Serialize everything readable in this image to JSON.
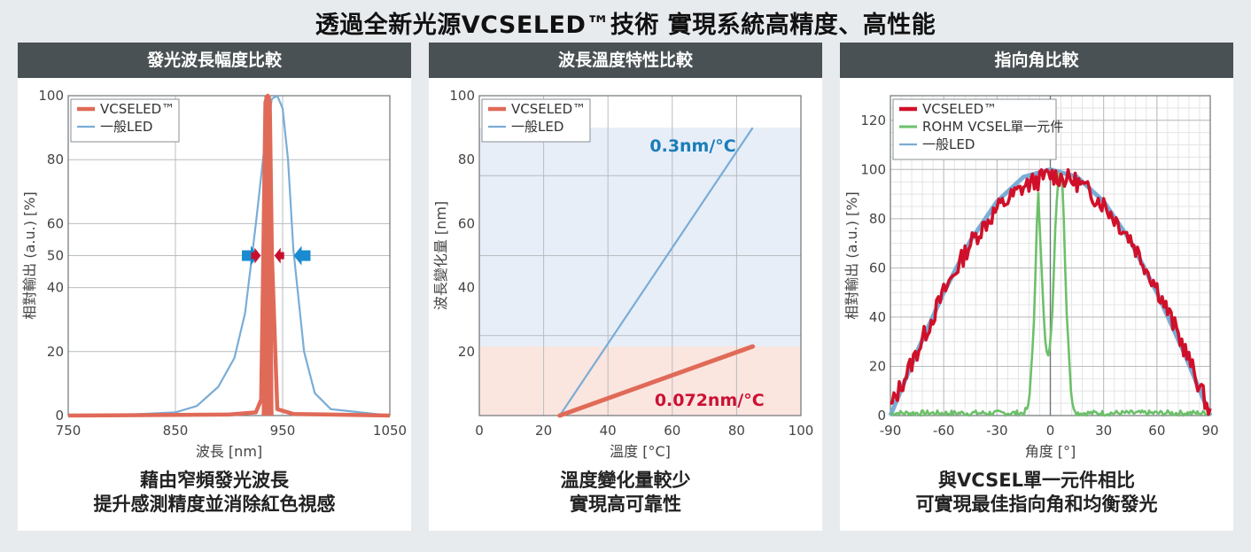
{
  "title": "透過全新光源VCSELED™技術 實現系統高精度、高性能",
  "colors": {
    "vcseled": "#e06a58",
    "vcseled_dark": "#d0102a",
    "led": "#7aadd6",
    "rohm": "#6dc06a",
    "header_bg": "#495154",
    "label_blue": "#1a7db8",
    "label_red": "#cc1133"
  },
  "panels": [
    {
      "header": "發光波長幅度比較",
      "caption_line1": "藉由窄頻發光波長",
      "caption_line2": "提升感測精度並消除紅色視感"
    },
    {
      "header": "波長溫度特性比較",
      "caption_line1": "溫度變化量較少",
      "caption_line2": "實現高可靠性"
    },
    {
      "header": "指向角比較",
      "caption_line1": "與VCSEL單一元件相比",
      "caption_line2": "可實現最佳指向角和均衡發光"
    }
  ],
  "chart_data": [
    {
      "type": "line",
      "xlabel": "波長 [nm]",
      "ylabel": "相對輸出 (a.u.) [%]",
      "xlim": [
        750,
        1050
      ],
      "ylim": [
        0,
        100
      ],
      "x_ticks": [
        750,
        850,
        950,
        1050
      ],
      "y_ticks": [
        0,
        20,
        40,
        50,
        60,
        80,
        100
      ],
      "grid": true,
      "legend_position": "top-left",
      "series": [
        {
          "name": "VCSELED™",
          "color": "#e06a58",
          "x": [
            750,
            900,
            925,
            930,
            932,
            934,
            936,
            938,
            940,
            945,
            960,
            1050
          ],
          "y": [
            0,
            0.3,
            1,
            5,
            50,
            98,
            100,
            98,
            50,
            2,
            0.5,
            0
          ]
        },
        {
          "name": "一般LED",
          "color": "#7aadd6",
          "x": [
            750,
            800,
            850,
            870,
            890,
            905,
            915,
            925,
            935,
            940,
            945,
            950,
            955,
            960,
            970,
            980,
            995,
            1050
          ],
          "y": [
            0,
            0.2,
            1,
            3,
            9,
            18,
            32,
            60,
            90,
            99,
            100,
            96,
            80,
            52,
            20,
            7,
            2,
            0
          ]
        }
      ],
      "annotation": "arrows at 50% indicating narrow full width"
    },
    {
      "type": "line",
      "xlabel": "溫度 [°C]",
      "ylabel": "波長變化量 [nm]",
      "xlim": [
        0,
        100
      ],
      "ylim": [
        0,
        100
      ],
      "x_ticks": [
        0,
        20,
        40,
        60,
        80,
        100
      ],
      "y_ticks": [
        20,
        40,
        60,
        80,
        100
      ],
      "grid": true,
      "legend_position": "top-left",
      "bands": [
        {
          "from": 0,
          "to": 21.6,
          "color": "#fbe5df"
        },
        {
          "from": 21.6,
          "to": 90,
          "color": "#e7eef8"
        }
      ],
      "series": [
        {
          "name": "VCSELED™",
          "color": "#e06a58",
          "x": [
            25,
            85
          ],
          "y": [
            0,
            21.6
          ]
        },
        {
          "name": "一般LED",
          "color": "#7aadd6",
          "x": [
            25,
            85
          ],
          "y": [
            0,
            90
          ]
        }
      ],
      "annotations": [
        {
          "text": "0.3nm/°C",
          "color": "#1a7db8"
        },
        {
          "text": "0.072nm/°C",
          "color": "#cc1133"
        }
      ]
    },
    {
      "type": "line",
      "xlabel": "角度 [°]",
      "ylabel": "相對輸出 (a.u.) [%]",
      "xlim": [
        -90,
        90
      ],
      "ylim": [
        0,
        130
      ],
      "x_ticks": [
        -90,
        -60,
        -30,
        0,
        30,
        60,
        90
      ],
      "y_ticks": [
        0,
        20,
        40,
        60,
        80,
        100,
        120
      ],
      "grid": true,
      "legend_position": "top-left",
      "series": [
        {
          "name": "VCSELED™",
          "color": "#d0102a",
          "x": [
            -90,
            -75,
            -60,
            -45,
            -30,
            -15,
            0,
            15,
            30,
            45,
            60,
            75,
            90
          ],
          "y": [
            3,
            26,
            50,
            70,
            84,
            93,
            98,
            95,
            86,
            72,
            52,
            28,
            1
          ]
        },
        {
          "name": "ROHM VCSEL單一元件",
          "color": "#6dc06a",
          "x": [
            -90,
            -30,
            -15,
            -12,
            -9,
            -7,
            -5,
            -3,
            -1,
            1,
            3,
            5,
            7,
            9,
            12,
            15,
            30,
            90
          ],
          "y": [
            1,
            1,
            1,
            4,
            40,
            95,
            60,
            30,
            23,
            40,
            80,
            100,
            95,
            45,
            5,
            1,
            1,
            1
          ]
        },
        {
          "name": "一般LED",
          "color": "#7aadd6",
          "x": [
            -90,
            -75,
            -60,
            -45,
            -30,
            -15,
            0,
            15,
            30,
            45,
            60,
            75,
            90
          ],
          "y": [
            0,
            26,
            50,
            71,
            87,
            97,
            100,
            97,
            87,
            71,
            50,
            26,
            0
          ]
        }
      ]
    }
  ]
}
